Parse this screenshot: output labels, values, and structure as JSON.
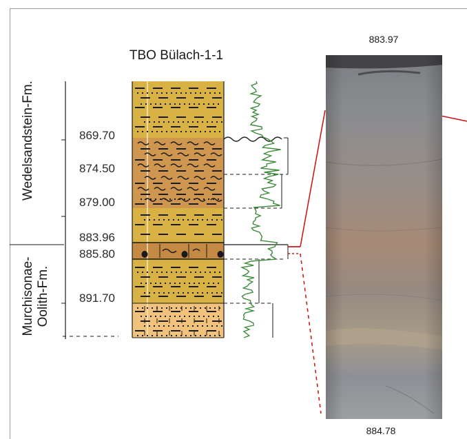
{
  "title": "TBO Bülach-1-1",
  "formations": {
    "upper": "Wedelsandstein-Fm.",
    "lower_line1": "Murchisonae-",
    "lower_line2": "Oolith-Fm."
  },
  "depths": [
    "869.70",
    "874.50",
    "879.00",
    "883.96",
    "885.80",
    "891.70"
  ],
  "core": {
    "top_depth": "883.97",
    "bottom_depth": "884.78"
  },
  "colors": {
    "sand_yellow": "#d9b245",
    "clay_orange": "#cf9650",
    "pale_orange": "#f0c27c",
    "gamma_log": "#3d8a3a",
    "highlight": "#cc1a1a",
    "ink": "#1a1a1a"
  }
}
